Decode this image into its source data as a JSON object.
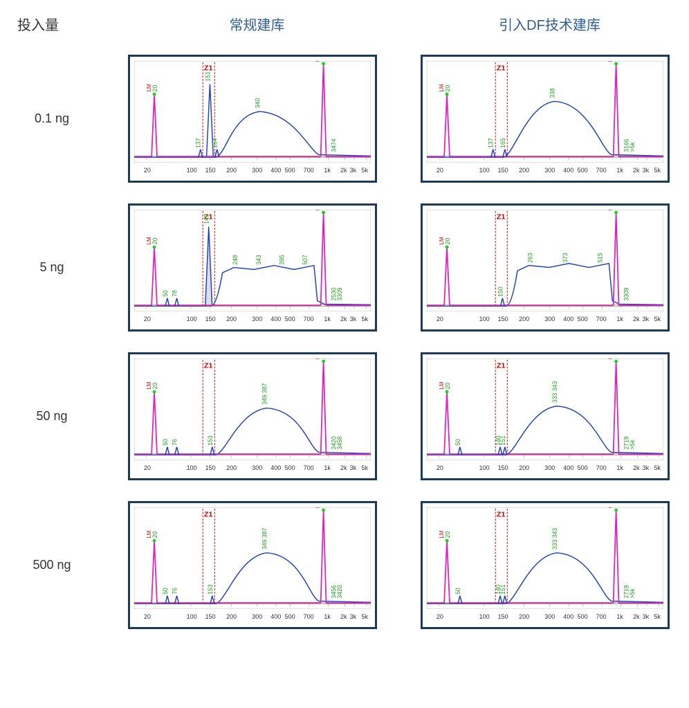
{
  "headers": {
    "left": "投入量",
    "col1": "常规建库",
    "col2": "引入DF技术建库"
  },
  "rows": [
    "0.1 ng",
    "5 ng",
    "50 ng",
    "500 ng"
  ],
  "axis_ticks": [
    {
      "label": "20",
      "x": 0.05
    },
    {
      "label": "100",
      "x": 0.24
    },
    {
      "label": "150",
      "x": 0.32
    },
    {
      "label": "200",
      "x": 0.41
    },
    {
      "label": "300",
      "x": 0.52
    },
    {
      "label": "400",
      "x": 0.6
    },
    {
      "label": "500",
      "x": 0.66
    },
    {
      "label": "700",
      "x": 0.74
    },
    {
      "label": "1k",
      "x": 0.82
    },
    {
      "label": "2k",
      "x": 0.89
    },
    {
      "label": "3k",
      "x": 0.93
    },
    {
      "label": "5k",
      "x": 0.98
    }
  ],
  "colors": {
    "border": "#1a3a5c",
    "header_text": "#2e5c9a",
    "body_text": "#333333",
    "blue": "#2040c0",
    "magenta": "#e020c0",
    "green": "#20a020",
    "red": "#cc0000",
    "baseline": "#c09060"
  },
  "charts": [
    {
      "row": 0,
      "col": 0,
      "z1_x": [
        0.29,
        0.34
      ],
      "lm_peak_x": 0.085,
      "lm_label": "LM",
      "lm_peak_h": 0.62,
      "lm_tag": "20",
      "um_peak_x": 0.8,
      "um_label": "UM",
      "um_peak_h": 0.92,
      "um_tag": "1000",
      "blue_hump": {
        "start": 0.36,
        "end": 0.78,
        "peak_x": 0.53,
        "peak_h": 0.45,
        "label": "340"
      },
      "extra_blue_spike": {
        "x": 0.32,
        "h": 0.72,
        "label": "151"
      },
      "small_peaks": [
        {
          "x": 0.28,
          "label": "137"
        },
        {
          "x": 0.35,
          "label": "164"
        }
      ],
      "tail_labels": [
        "3474"
      ]
    },
    {
      "row": 0,
      "col": 1,
      "z1_x": [
        0.29,
        0.34
      ],
      "lm_peak_x": 0.085,
      "lm_label": "LM",
      "lm_peak_h": 0.62,
      "lm_tag": "20",
      "um_peak_x": 0.8,
      "um_label": "UM",
      "um_peak_h": 0.92,
      "um_tag": "1000",
      "blue_hump": {
        "start": 0.34,
        "end": 0.78,
        "peak_x": 0.54,
        "peak_h": 0.55,
        "label": "338"
      },
      "small_peaks": [
        {
          "x": 0.28,
          "label": "137"
        },
        {
          "x": 0.33,
          "label": "165"
        }
      ],
      "tail_labels": [
        "3166",
        ">5k"
      ]
    },
    {
      "row": 1,
      "col": 0,
      "z1_x": [
        0.29,
        0.34
      ],
      "lm_peak_x": 0.085,
      "lm_label": "LM",
      "lm_peak_h": 0.58,
      "lm_tag": "20",
      "um_peak_x": 0.8,
      "um_label": "UM",
      "um_peak_h": 0.92,
      "um_tag": "1000",
      "blue_plateau": {
        "start": 0.35,
        "end": 0.76,
        "h": 0.38,
        "labels": [
          "248",
          "343",
          "395",
          "507"
        ]
      },
      "extra_blue_spike": {
        "x": 0.315,
        "h": 0.78,
        "label": "149",
        "grey_fill": true
      },
      "small_peaks": [
        {
          "x": 0.14,
          "label": "50"
        },
        {
          "x": 0.18,
          "label": "78"
        }
      ],
      "tail_labels": [
        "2530",
        "3309"
      ]
    },
    {
      "row": 1,
      "col": 1,
      "z1_x": [
        0.29,
        0.34
      ],
      "lm_peak_x": 0.085,
      "lm_label": "LM",
      "lm_peak_h": 0.58,
      "lm_tag": "20",
      "um_peak_x": 0.8,
      "um_label": "UM",
      "um_peak_h": 0.92,
      "um_tag": "1000",
      "blue_plateau": {
        "start": 0.36,
        "end": 0.77,
        "h": 0.4,
        "labels": [
          "263",
          "373",
          "515"
        ]
      },
      "small_peaks": [
        {
          "x": 0.32,
          "label": "150"
        }
      ],
      "tail_labels": [
        "3309"
      ]
    },
    {
      "row": 2,
      "col": 0,
      "z1_x": [
        0.29,
        0.34
      ],
      "lm_peak_x": 0.085,
      "lm_label": "LM",
      "lm_peak_h": 0.62,
      "lm_tag": "20",
      "um_peak_x": 0.8,
      "um_label": "UM",
      "um_peak_h": 0.92,
      "um_tag": "1000",
      "blue_hump": {
        "start": 0.36,
        "end": 0.78,
        "peak_x": 0.56,
        "peak_h": 0.46,
        "label": "349 387"
      },
      "small_peaks": [
        {
          "x": 0.14,
          "label": "50"
        },
        {
          "x": 0.18,
          "label": "76"
        },
        {
          "x": 0.33,
          "label": "153"
        }
      ],
      "tail_labels": [
        "3420",
        "3458"
      ]
    },
    {
      "row": 2,
      "col": 1,
      "z1_x": [
        0.29,
        0.34
      ],
      "lm_peak_x": 0.085,
      "lm_label": "LM",
      "lm_peak_h": 0.62,
      "lm_tag": "20",
      "um_peak_x": 0.8,
      "um_label": "UM",
      "um_peak_h": 0.92,
      "um_tag": "1000",
      "blue_hump": {
        "start": 0.35,
        "end": 0.78,
        "peak_x": 0.55,
        "peak_h": 0.48,
        "label": "333 343"
      },
      "small_peaks": [
        {
          "x": 0.14,
          "label": "50"
        },
        {
          "x": 0.31,
          "label": "140"
        },
        {
          "x": 0.33,
          "label": "151"
        }
      ],
      "tail_labels": [
        "2719",
        ">5k"
      ]
    },
    {
      "row": 3,
      "col": 0,
      "z1_x": [
        0.29,
        0.34
      ],
      "lm_peak_x": 0.085,
      "lm_label": "LM",
      "lm_peak_h": 0.62,
      "lm_tag": "20",
      "um_peak_x": 0.8,
      "um_label": "UM",
      "um_peak_h": 0.92,
      "um_tag": "1000",
      "blue_hump": {
        "start": 0.36,
        "end": 0.78,
        "peak_x": 0.56,
        "peak_h": 0.5,
        "label": "349 387"
      },
      "small_peaks": [
        {
          "x": 0.14,
          "label": "50"
        },
        {
          "x": 0.18,
          "label": "76"
        },
        {
          "x": 0.33,
          "label": "153"
        }
      ],
      "tail_labels": [
        "3456",
        "3420"
      ]
    },
    {
      "row": 3,
      "col": 1,
      "z1_x": [
        0.29,
        0.34
      ],
      "lm_peak_x": 0.085,
      "lm_label": "LM",
      "lm_peak_h": 0.62,
      "lm_tag": "20",
      "um_peak_x": 0.8,
      "um_label": "UM",
      "um_peak_h": 0.92,
      "um_tag": "1000",
      "blue_hump": {
        "start": 0.35,
        "end": 0.78,
        "peak_x": 0.55,
        "peak_h": 0.5,
        "label": "333 343"
      },
      "small_peaks": [
        {
          "x": 0.14,
          "label": "50"
        },
        {
          "x": 0.31,
          "label": "140"
        },
        {
          "x": 0.33,
          "label": "151"
        }
      ],
      "tail_labels": [
        "2719",
        ">5k"
      ]
    }
  ]
}
